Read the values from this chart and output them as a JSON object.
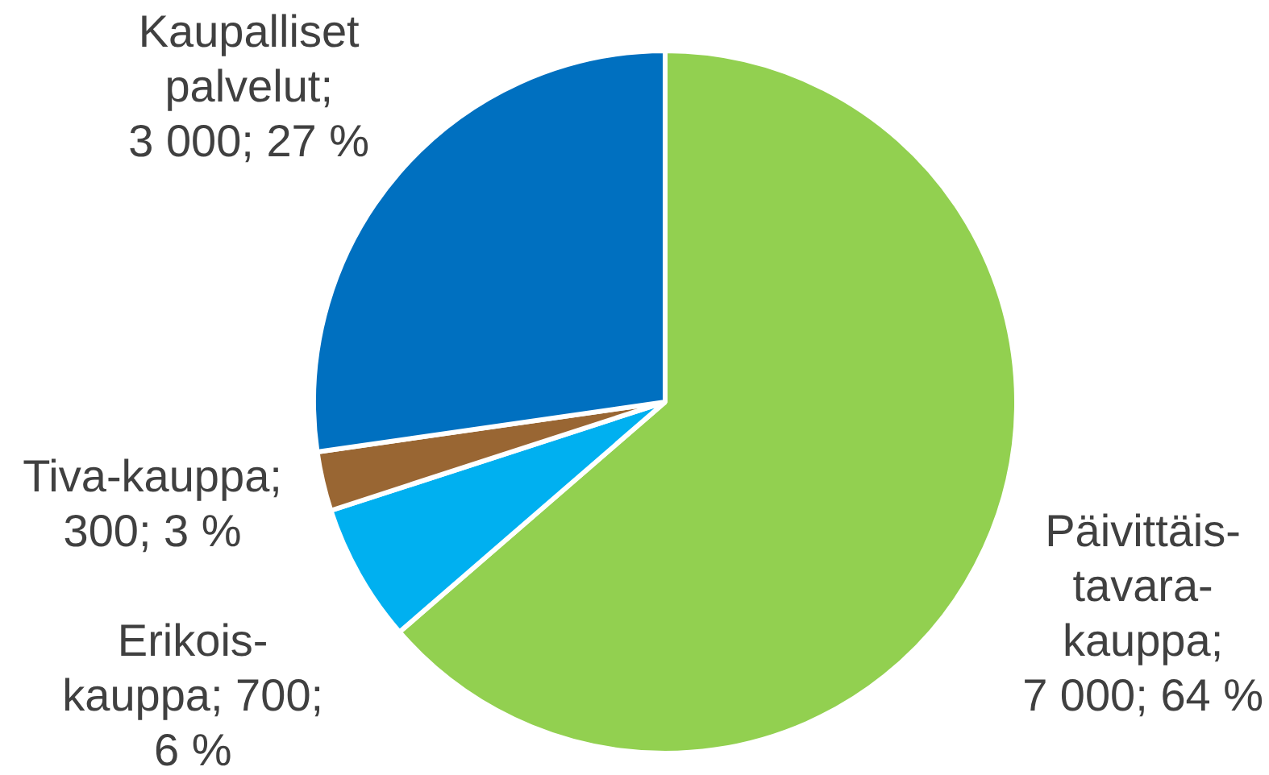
{
  "chart_data": {
    "type": "pie",
    "categories": [
      null,
      null,
      null,
      null
    ],
    "values": [
      7000,
      700,
      300,
      3000
    ],
    "colors": [
      "#92d050",
      "#00b0f0",
      "#996633",
      "#0070c0"
    ],
    "value_labels": [
      "Päivittäis-tavara-kauppa; 7 000; 64 %",
      "Erikois-kauppa; 700; 6 %",
      "Tiva-kauppa; 300; 3 %",
      "Kaupalliset palvelut; 3 000; 27 %"
    ]
  }
}
